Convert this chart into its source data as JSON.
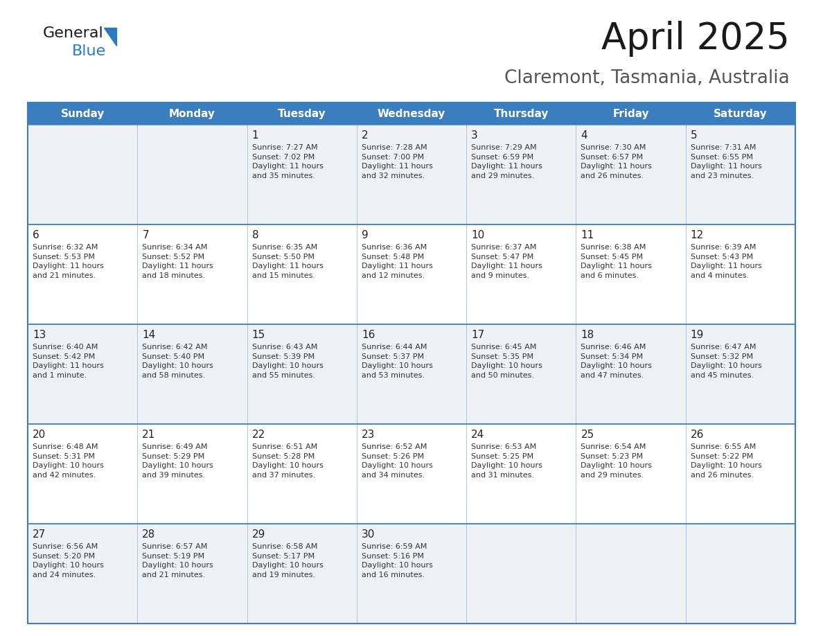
{
  "title": "April 2025",
  "subtitle": "Claremont, Tasmania, Australia",
  "header_bg": "#3a7ebf",
  "header_text": "#ffffff",
  "row_bg_light": "#eef2f7",
  "row_bg_white": "#ffffff",
  "cell_border_color": "#3a7ebf",
  "cell_sep_color": "#b0c4d8",
  "day_headers": [
    "Sunday",
    "Monday",
    "Tuesday",
    "Wednesday",
    "Thursday",
    "Friday",
    "Saturday"
  ],
  "weeks": [
    [
      {
        "day": "",
        "sunrise": "",
        "sunset": "",
        "daylight": ""
      },
      {
        "day": "",
        "sunrise": "",
        "sunset": "",
        "daylight": ""
      },
      {
        "day": "1",
        "sunrise": "Sunrise: 7:27 AM",
        "sunset": "Sunset: 7:02 PM",
        "daylight": "Daylight: 11 hours\nand 35 minutes."
      },
      {
        "day": "2",
        "sunrise": "Sunrise: 7:28 AM",
        "sunset": "Sunset: 7:00 PM",
        "daylight": "Daylight: 11 hours\nand 32 minutes."
      },
      {
        "day": "3",
        "sunrise": "Sunrise: 7:29 AM",
        "sunset": "Sunset: 6:59 PM",
        "daylight": "Daylight: 11 hours\nand 29 minutes."
      },
      {
        "day": "4",
        "sunrise": "Sunrise: 7:30 AM",
        "sunset": "Sunset: 6:57 PM",
        "daylight": "Daylight: 11 hours\nand 26 minutes."
      },
      {
        "day": "5",
        "sunrise": "Sunrise: 7:31 AM",
        "sunset": "Sunset: 6:55 PM",
        "daylight": "Daylight: 11 hours\nand 23 minutes."
      }
    ],
    [
      {
        "day": "6",
        "sunrise": "Sunrise: 6:32 AM",
        "sunset": "Sunset: 5:53 PM",
        "daylight": "Daylight: 11 hours\nand 21 minutes."
      },
      {
        "day": "7",
        "sunrise": "Sunrise: 6:34 AM",
        "sunset": "Sunset: 5:52 PM",
        "daylight": "Daylight: 11 hours\nand 18 minutes."
      },
      {
        "day": "8",
        "sunrise": "Sunrise: 6:35 AM",
        "sunset": "Sunset: 5:50 PM",
        "daylight": "Daylight: 11 hours\nand 15 minutes."
      },
      {
        "day": "9",
        "sunrise": "Sunrise: 6:36 AM",
        "sunset": "Sunset: 5:48 PM",
        "daylight": "Daylight: 11 hours\nand 12 minutes."
      },
      {
        "day": "10",
        "sunrise": "Sunrise: 6:37 AM",
        "sunset": "Sunset: 5:47 PM",
        "daylight": "Daylight: 11 hours\nand 9 minutes."
      },
      {
        "day": "11",
        "sunrise": "Sunrise: 6:38 AM",
        "sunset": "Sunset: 5:45 PM",
        "daylight": "Daylight: 11 hours\nand 6 minutes."
      },
      {
        "day": "12",
        "sunrise": "Sunrise: 6:39 AM",
        "sunset": "Sunset: 5:43 PM",
        "daylight": "Daylight: 11 hours\nand 4 minutes."
      }
    ],
    [
      {
        "day": "13",
        "sunrise": "Sunrise: 6:40 AM",
        "sunset": "Sunset: 5:42 PM",
        "daylight": "Daylight: 11 hours\nand 1 minute."
      },
      {
        "day": "14",
        "sunrise": "Sunrise: 6:42 AM",
        "sunset": "Sunset: 5:40 PM",
        "daylight": "Daylight: 10 hours\nand 58 minutes."
      },
      {
        "day": "15",
        "sunrise": "Sunrise: 6:43 AM",
        "sunset": "Sunset: 5:39 PM",
        "daylight": "Daylight: 10 hours\nand 55 minutes."
      },
      {
        "day": "16",
        "sunrise": "Sunrise: 6:44 AM",
        "sunset": "Sunset: 5:37 PM",
        "daylight": "Daylight: 10 hours\nand 53 minutes."
      },
      {
        "day": "17",
        "sunrise": "Sunrise: 6:45 AM",
        "sunset": "Sunset: 5:35 PM",
        "daylight": "Daylight: 10 hours\nand 50 minutes."
      },
      {
        "day": "18",
        "sunrise": "Sunrise: 6:46 AM",
        "sunset": "Sunset: 5:34 PM",
        "daylight": "Daylight: 10 hours\nand 47 minutes."
      },
      {
        "day": "19",
        "sunrise": "Sunrise: 6:47 AM",
        "sunset": "Sunset: 5:32 PM",
        "daylight": "Daylight: 10 hours\nand 45 minutes."
      }
    ],
    [
      {
        "day": "20",
        "sunrise": "Sunrise: 6:48 AM",
        "sunset": "Sunset: 5:31 PM",
        "daylight": "Daylight: 10 hours\nand 42 minutes."
      },
      {
        "day": "21",
        "sunrise": "Sunrise: 6:49 AM",
        "sunset": "Sunset: 5:29 PM",
        "daylight": "Daylight: 10 hours\nand 39 minutes."
      },
      {
        "day": "22",
        "sunrise": "Sunrise: 6:51 AM",
        "sunset": "Sunset: 5:28 PM",
        "daylight": "Daylight: 10 hours\nand 37 minutes."
      },
      {
        "day": "23",
        "sunrise": "Sunrise: 6:52 AM",
        "sunset": "Sunset: 5:26 PM",
        "daylight": "Daylight: 10 hours\nand 34 minutes."
      },
      {
        "day": "24",
        "sunrise": "Sunrise: 6:53 AM",
        "sunset": "Sunset: 5:25 PM",
        "daylight": "Daylight: 10 hours\nand 31 minutes."
      },
      {
        "day": "25",
        "sunrise": "Sunrise: 6:54 AM",
        "sunset": "Sunset: 5:23 PM",
        "daylight": "Daylight: 10 hours\nand 29 minutes."
      },
      {
        "day": "26",
        "sunrise": "Sunrise: 6:55 AM",
        "sunset": "Sunset: 5:22 PM",
        "daylight": "Daylight: 10 hours\nand 26 minutes."
      }
    ],
    [
      {
        "day": "27",
        "sunrise": "Sunrise: 6:56 AM",
        "sunset": "Sunset: 5:20 PM",
        "daylight": "Daylight: 10 hours\nand 24 minutes."
      },
      {
        "day": "28",
        "sunrise": "Sunrise: 6:57 AM",
        "sunset": "Sunset: 5:19 PM",
        "daylight": "Daylight: 10 hours\nand 21 minutes."
      },
      {
        "day": "29",
        "sunrise": "Sunrise: 6:58 AM",
        "sunset": "Sunset: 5:17 PM",
        "daylight": "Daylight: 10 hours\nand 19 minutes."
      },
      {
        "day": "30",
        "sunrise": "Sunrise: 6:59 AM",
        "sunset": "Sunset: 5:16 PM",
        "daylight": "Daylight: 10 hours\nand 16 minutes."
      },
      {
        "day": "",
        "sunrise": "",
        "sunset": "",
        "daylight": ""
      },
      {
        "day": "",
        "sunrise": "",
        "sunset": "",
        "daylight": ""
      },
      {
        "day": "",
        "sunrise": "",
        "sunset": "",
        "daylight": ""
      }
    ]
  ],
  "logo_color_general": "#1a1a1a",
  "logo_color_blue": "#2b7bbf",
  "title_fontsize": 38,
  "subtitle_fontsize": 19,
  "header_fontsize": 11,
  "day_num_fontsize": 11,
  "cell_text_fontsize": 8.0
}
